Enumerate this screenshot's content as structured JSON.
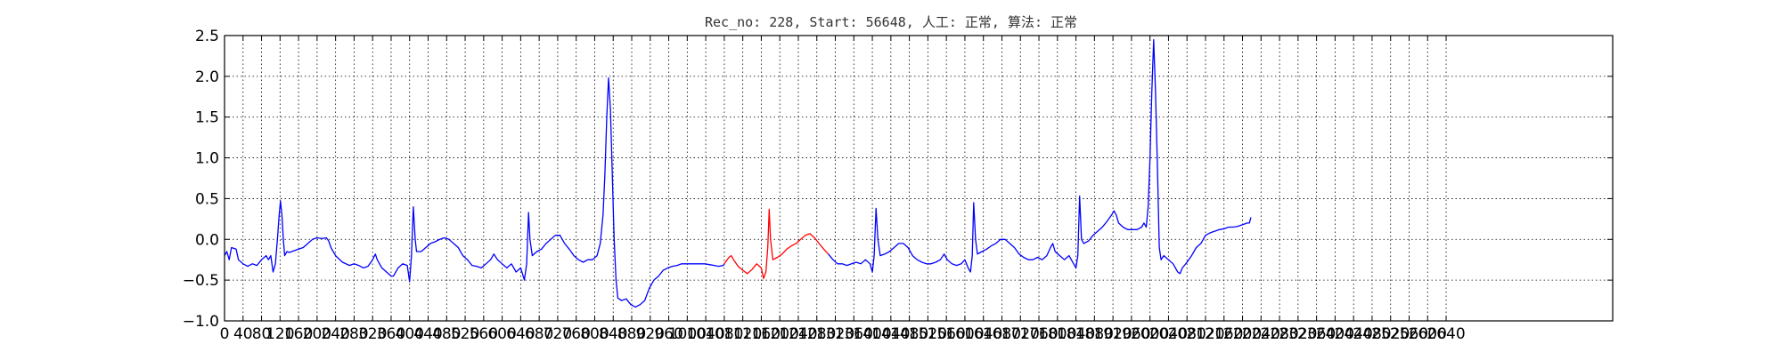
{
  "chart_data": {
    "type": "line",
    "title": "Rec_no: 228, Start: 56648, 人工: 正常, 算法: 正常",
    "xlabel": "",
    "ylabel": "",
    "xlim": [
      0,
      3000
    ],
    "ylim": [
      -1.0,
      2.5
    ],
    "grid": true,
    "yticks": [
      "−1.0",
      "−0.5",
      "0.0",
      "0.5",
      "1.0",
      "1.5",
      "2.0",
      "2.5"
    ],
    "ytick_values": [
      -1.0,
      -0.5,
      0.0,
      0.5,
      1.0,
      1.5,
      2.0,
      2.5
    ],
    "xtick_values": [
      0,
      40,
      80,
      120,
      160,
      200,
      240,
      280,
      320,
      360,
      400,
      440,
      480,
      520,
      560,
      600,
      640,
      680,
      720,
      760,
      800,
      840,
      880,
      920,
      960,
      1000,
      1040,
      1080,
      1120,
      1160,
      1200,
      1240,
      1280,
      1320,
      1360,
      1400,
      1440,
      1480,
      1520,
      1560,
      1600,
      1640,
      1680,
      1720,
      1760,
      1800,
      1840,
      1880,
      1920,
      1960,
      2000,
      2040,
      2080,
      2120,
      2160,
      2200,
      2240,
      2280,
      2320,
      2360,
      2400,
      2440,
      2480,
      2520,
      2560,
      2600,
      2640
    ],
    "xtick_labels": [
      "0",
      "40",
      "80",
      "120",
      "160",
      "200",
      "240",
      "280",
      "320",
      "360",
      "400",
      "440",
      "480",
      "520",
      "560",
      "600",
      "640",
      "680",
      "720",
      "760",
      "800",
      "840",
      "880",
      "920",
      "960",
      "1000",
      "1040",
      "1080",
      "1120",
      "1160",
      "1200",
      "1240",
      "1280",
      "1320",
      "1360",
      "1400",
      "1440",
      "1480",
      "1520",
      "1560",
      "1600",
      "1640",
      "1680",
      "1720",
      "1760",
      "1800",
      "1840",
      "1880",
      "1920",
      "1960",
      "2000",
      "2040",
      "2080",
      "2120",
      "2160",
      "2200",
      "2240",
      "2280",
      "2320",
      "2360",
      "2400",
      "2440",
      "2480",
      "2520",
      "2560",
      "2600",
      "2640"
    ],
    "series": [
      {
        "color": "#0000ff",
        "points": [
          [
            0,
            -0.2
          ],
          [
            5,
            -0.15
          ],
          [
            10,
            -0.25
          ],
          [
            15,
            -0.1
          ],
          [
            25,
            -0.12
          ],
          [
            30,
            -0.25
          ],
          [
            40,
            -0.3
          ],
          [
            50,
            -0.33
          ],
          [
            60,
            -0.3
          ],
          [
            70,
            -0.32
          ],
          [
            80,
            -0.25
          ],
          [
            90,
            -0.2
          ],
          [
            95,
            -0.25
          ],
          [
            100,
            -0.2
          ],
          [
            105,
            -0.4
          ],
          [
            110,
            -0.3
          ],
          [
            115,
            0.05
          ],
          [
            118,
            0.3
          ],
          [
            121,
            0.47
          ],
          [
            124,
            0.3
          ],
          [
            127,
            0.0
          ],
          [
            130,
            -0.2
          ],
          [
            135,
            -0.15
          ],
          [
            140,
            -0.16
          ],
          [
            150,
            -0.14
          ],
          [
            160,
            -0.12
          ],
          [
            170,
            -0.1
          ],
          [
            180,
            -0.05
          ],
          [
            190,
            0.0
          ],
          [
            200,
            0.02
          ],
          [
            210,
            0.01
          ],
          [
            220,
            0.02
          ],
          [
            225,
            -0.02
          ],
          [
            230,
            -0.1
          ],
          [
            240,
            -0.2
          ],
          [
            255,
            -0.28
          ],
          [
            270,
            -0.32
          ],
          [
            280,
            -0.3
          ],
          [
            290,
            -0.32
          ],
          [
            300,
            -0.35
          ],
          [
            310,
            -0.33
          ],
          [
            320,
            -0.25
          ],
          [
            326,
            -0.18
          ],
          [
            330,
            -0.25
          ],
          [
            340,
            -0.35
          ],
          [
            350,
            -0.4
          ],
          [
            360,
            -0.45
          ],
          [
            365,
            -0.45
          ],
          [
            375,
            -0.35
          ],
          [
            385,
            -0.3
          ],
          [
            395,
            -0.32
          ],
          [
            400,
            -0.52
          ],
          [
            404,
            -0.2
          ],
          [
            408,
            0.4
          ],
          [
            412,
            0.0
          ],
          [
            415,
            -0.15
          ],
          [
            425,
            -0.15
          ],
          [
            435,
            -0.1
          ],
          [
            445,
            -0.05
          ],
          [
            455,
            -0.03
          ],
          [
            465,
            0.0
          ],
          [
            475,
            0.02
          ],
          [
            485,
            0.0
          ],
          [
            495,
            -0.05
          ],
          [
            505,
            -0.1
          ],
          [
            515,
            -0.2
          ],
          [
            525,
            -0.25
          ],
          [
            535,
            -0.32
          ],
          [
            545,
            -0.33
          ],
          [
            555,
            -0.35
          ],
          [
            565,
            -0.3
          ],
          [
            575,
            -0.25
          ],
          [
            582,
            -0.18
          ],
          [
            590,
            -0.25
          ],
          [
            600,
            -0.3
          ],
          [
            610,
            -0.35
          ],
          [
            620,
            -0.3
          ],
          [
            630,
            -0.4
          ],
          [
            640,
            -0.35
          ],
          [
            648,
            -0.5
          ],
          [
            653,
            -0.3
          ],
          [
            657,
            0.33
          ],
          [
            660,
            0.0
          ],
          [
            665,
            -0.2
          ],
          [
            675,
            -0.15
          ],
          [
            685,
            -0.12
          ],
          [
            695,
            -0.05
          ],
          [
            705,
            0.0
          ],
          [
            715,
            0.05
          ],
          [
            725,
            0.05
          ],
          [
            735,
            -0.05
          ],
          [
            745,
            -0.12
          ],
          [
            755,
            -0.2
          ],
          [
            765,
            -0.25
          ],
          [
            775,
            -0.28
          ],
          [
            785,
            -0.25
          ],
          [
            795,
            -0.25
          ],
          [
            805,
            -0.2
          ],
          [
            812,
            -0.05
          ],
          [
            818,
            0.3
          ],
          [
            822,
            0.8
          ],
          [
            826,
            1.5
          ],
          [
            830,
            1.98
          ],
          [
            834,
            1.6
          ],
          [
            838,
            0.8
          ],
          [
            842,
            0.0
          ],
          [
            846,
            -0.5
          ],
          [
            850,
            -0.72
          ],
          [
            858,
            -0.75
          ],
          [
            868,
            -0.73
          ],
          [
            878,
            -0.8
          ],
          [
            888,
            -0.83
          ],
          [
            898,
            -0.8
          ],
          [
            908,
            -0.75
          ],
          [
            918,
            -0.6
          ],
          [
            928,
            -0.5
          ],
          [
            938,
            -0.45
          ],
          [
            948,
            -0.38
          ],
          [
            958,
            -0.35
          ],
          [
            968,
            -0.33
          ],
          [
            978,
            -0.32
          ],
          [
            988,
            -0.3
          ],
          [
            998,
            -0.3
          ],
          [
            1008,
            -0.3
          ],
          [
            1018,
            -0.3
          ],
          [
            1028,
            -0.3
          ],
          [
            1038,
            -0.3
          ],
          [
            1048,
            -0.31
          ],
          [
            1058,
            -0.32
          ],
          [
            1068,
            -0.33
          ],
          [
            1078,
            -0.32
          ],
          [
            1080,
            -0.3
          ]
        ]
      },
      {
        "color": "#ff0000",
        "points": [
          [
            1080,
            -0.3
          ],
          [
            1090,
            -0.22
          ],
          [
            1095,
            -0.2
          ],
          [
            1100,
            -0.25
          ],
          [
            1110,
            -0.33
          ],
          [
            1120,
            -0.38
          ],
          [
            1130,
            -0.42
          ],
          [
            1140,
            -0.37
          ],
          [
            1150,
            -0.3
          ],
          [
            1160,
            -0.35
          ],
          [
            1165,
            -0.48
          ],
          [
            1170,
            -0.4
          ],
          [
            1174,
            -0.1
          ],
          [
            1177,
            0.37
          ],
          [
            1180,
            0.0
          ],
          [
            1185,
            -0.25
          ],
          [
            1195,
            -0.22
          ],
          [
            1205,
            -0.18
          ],
          [
            1215,
            -0.12
          ],
          [
            1225,
            -0.08
          ],
          [
            1235,
            -0.05
          ],
          [
            1245,
            0.0
          ],
          [
            1255,
            0.05
          ],
          [
            1265,
            0.07
          ],
          [
            1275,
            0.02
          ],
          [
            1285,
            -0.05
          ],
          [
            1295,
            -0.12
          ],
          [
            1305,
            -0.18
          ]
        ]
      },
      {
        "color": "#0000ff",
        "points": [
          [
            1305,
            -0.18
          ],
          [
            1315,
            -0.25
          ],
          [
            1325,
            -0.3
          ],
          [
            1335,
            -0.3
          ],
          [
            1345,
            -0.32
          ],
          [
            1355,
            -0.3
          ],
          [
            1365,
            -0.28
          ],
          [
            1375,
            -0.3
          ],
          [
            1385,
            -0.25
          ],
          [
            1395,
            -0.3
          ],
          [
            1400,
            -0.4
          ],
          [
            1404,
            -0.2
          ],
          [
            1408,
            0.38
          ],
          [
            1412,
            0.0
          ],
          [
            1417,
            -0.2
          ],
          [
            1427,
            -0.18
          ],
          [
            1437,
            -0.15
          ],
          [
            1447,
            -0.1
          ],
          [
            1457,
            -0.05
          ],
          [
            1467,
            -0.05
          ],
          [
            1477,
            -0.1
          ],
          [
            1487,
            -0.2
          ],
          [
            1497,
            -0.25
          ],
          [
            1507,
            -0.28
          ],
          [
            1517,
            -0.3
          ],
          [
            1527,
            -0.3
          ],
          [
            1537,
            -0.28
          ],
          [
            1547,
            -0.25
          ],
          [
            1555,
            -0.18
          ],
          [
            1562,
            -0.25
          ],
          [
            1572,
            -0.3
          ],
          [
            1582,
            -0.32
          ],
          [
            1592,
            -0.3
          ],
          [
            1600,
            -0.25
          ],
          [
            1607,
            -0.35
          ],
          [
            1612,
            -0.4
          ],
          [
            1616,
            -0.2
          ],
          [
            1619,
            0.45
          ],
          [
            1623,
            0.0
          ],
          [
            1627,
            -0.18
          ],
          [
            1637,
            -0.15
          ],
          [
            1647,
            -0.12
          ],
          [
            1657,
            -0.08
          ],
          [
            1667,
            -0.05
          ],
          [
            1677,
            0.0
          ],
          [
            1687,
            0.0
          ],
          [
            1697,
            -0.05
          ],
          [
            1707,
            -0.1
          ],
          [
            1717,
            -0.18
          ],
          [
            1727,
            -0.22
          ],
          [
            1737,
            -0.25
          ],
          [
            1747,
            -0.25
          ],
          [
            1757,
            -0.22
          ],
          [
            1767,
            -0.25
          ],
          [
            1777,
            -0.2
          ],
          [
            1785,
            -0.1
          ],
          [
            1790,
            -0.05
          ],
          [
            1795,
            -0.15
          ],
          [
            1805,
            -0.2
          ],
          [
            1815,
            -0.25
          ],
          [
            1825,
            -0.2
          ],
          [
            1835,
            -0.3
          ],
          [
            1840,
            -0.35
          ],
          [
            1844,
            -0.2
          ],
          [
            1848,
            0.53
          ],
          [
            1852,
            0.0
          ],
          [
            1857,
            -0.05
          ],
          [
            1867,
            -0.02
          ],
          [
            1877,
            0.05
          ],
          [
            1887,
            0.1
          ],
          [
            1897,
            0.15
          ],
          [
            1907,
            0.22
          ],
          [
            1917,
            0.3
          ],
          [
            1922,
            0.35
          ],
          [
            1927,
            0.3
          ],
          [
            1932,
            0.2
          ],
          [
            1942,
            0.15
          ],
          [
            1952,
            0.12
          ],
          [
            1962,
            0.12
          ],
          [
            1972,
            0.12
          ],
          [
            1982,
            0.15
          ],
          [
            1987,
            0.2
          ],
          [
            1992,
            0.15
          ],
          [
            1996,
            0.4
          ],
          [
            2000,
            1.0
          ],
          [
            2004,
            1.8
          ],
          [
            2008,
            2.45
          ],
          [
            2012,
            1.8
          ],
          [
            2016,
            0.9
          ],
          [
            2020,
            -0.1
          ],
          [
            2024,
            -0.25
          ],
          [
            2030,
            -0.2
          ],
          [
            2040,
            -0.25
          ],
          [
            2050,
            -0.3
          ],
          [
            2060,
            -0.4
          ],
          [
            2065,
            -0.42
          ],
          [
            2070,
            -0.35
          ],
          [
            2080,
            -0.28
          ],
          [
            2090,
            -0.2
          ],
          [
            2100,
            -0.1
          ],
          [
            2110,
            -0.05
          ],
          [
            2120,
            0.05
          ],
          [
            2130,
            0.08
          ],
          [
            2140,
            0.1
          ],
          [
            2150,
            0.12
          ],
          [
            2160,
            0.13
          ],
          [
            2170,
            0.15
          ],
          [
            2180,
            0.15
          ],
          [
            2190,
            0.16
          ],
          [
            2200,
            0.18
          ],
          [
            2210,
            0.2
          ],
          [
            2215,
            0.2
          ],
          [
            2218,
            0.27
          ]
        ]
      }
    ]
  }
}
